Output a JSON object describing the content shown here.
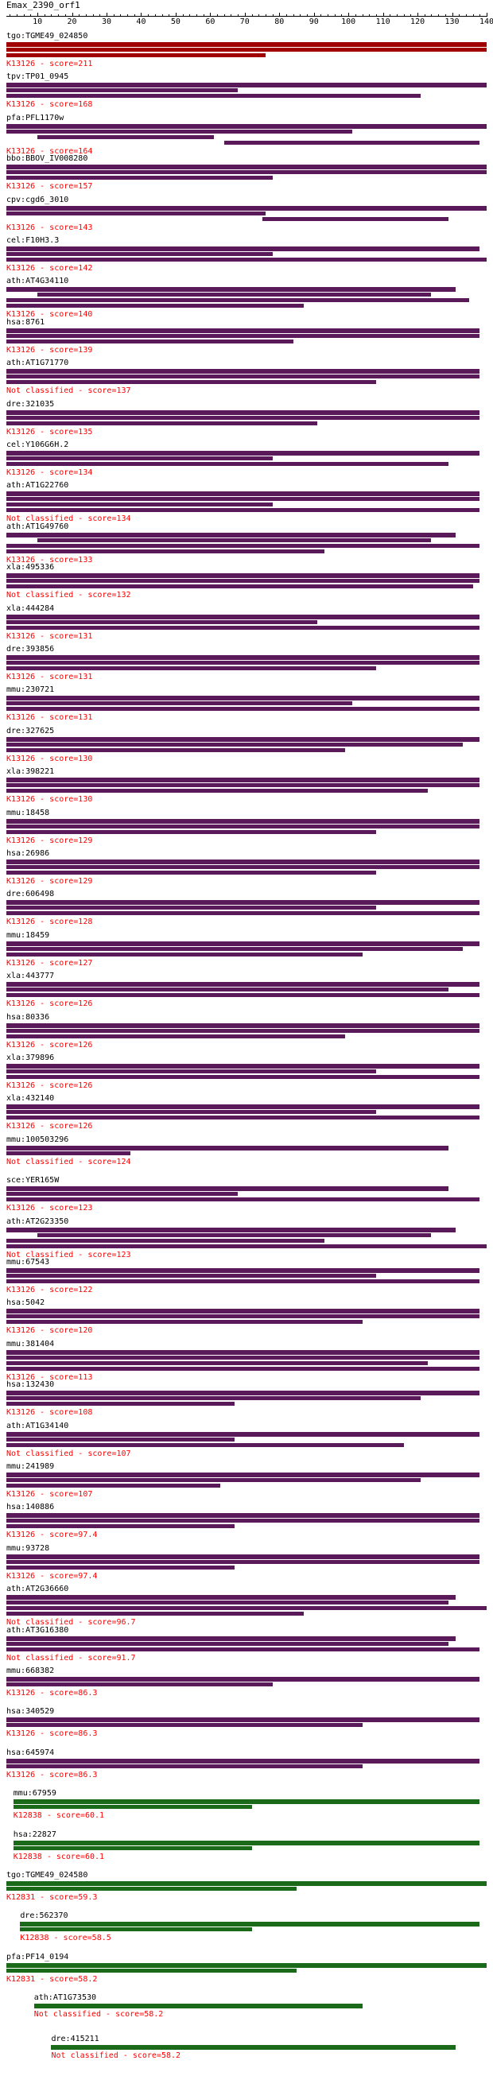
{
  "query": {
    "name": "Emax_2390_orf1",
    "length": 140,
    "ticks": [
      10,
      20,
      30,
      40,
      50,
      60,
      70,
      80,
      90,
      100,
      110,
      120,
      130,
      140
    ]
  },
  "colors": {
    "K13126": "#7f0000",
    "default_bar": "#5a1a5a",
    "green_bar": "#1a6a1a",
    "label_red": "#ff0000"
  },
  "hits": [
    {
      "name": "tgo:TGME49_024850",
      "classification": "K13126 - score=211",
      "color": "#a00000",
      "bars": [
        [
          1,
          140
        ],
        [
          1,
          140
        ],
        [
          1,
          76
        ]
      ]
    },
    {
      "name": "tpv:TP01_0945",
      "classification": "K13126 - score=168",
      "color": "#5a1a5a",
      "bars": [
        [
          1,
          140
        ],
        [
          1,
          68
        ],
        [
          1,
          121
        ]
      ]
    },
    {
      "name": "pfa:PFL1170w",
      "classification": "K13126 - score=164",
      "color": "#5a1a5a",
      "bars": [
        [
          1,
          140
        ],
        [
          1,
          101
        ],
        [
          10,
          61
        ],
        [
          64,
          138
        ]
      ]
    },
    {
      "name": "bbo:BBOV_IV008280",
      "classification": "K13126 - score=157",
      "color": "#5a1a5a",
      "bars": [
        [
          1,
          140
        ],
        [
          1,
          140
        ],
        [
          1,
          78
        ]
      ]
    },
    {
      "name": "cpv:cgd6_3010",
      "classification": "K13126 - score=143",
      "color": "#5a1a5a",
      "bars": [
        [
          1,
          140
        ],
        [
          1,
          76
        ],
        [
          75,
          129
        ]
      ]
    },
    {
      "name": "cel:F10H3.3",
      "classification": "K13126 - score=142",
      "color": "#5a1a5a",
      "bars": [
        [
          1,
          138
        ],
        [
          1,
          78
        ],
        [
          1,
          140
        ]
      ]
    },
    {
      "name": "ath:AT4G34110",
      "classification": "K13126 - score=140",
      "color": "#5a1a5a",
      "bars": [
        [
          1,
          131
        ],
        [
          10,
          124
        ],
        [
          1,
          135
        ],
        [
          1,
          87
        ]
      ]
    },
    {
      "name": "hsa:8761",
      "classification": "K13126 - score=139",
      "color": "#5a1a5a",
      "bars": [
        [
          1,
          138
        ],
        [
          1,
          138
        ],
        [
          1,
          84
        ]
      ]
    },
    {
      "name": "ath:AT1G71770",
      "classification": "Not classified - score=137",
      "color": "#5a1a5a",
      "bars": [
        [
          1,
          138
        ],
        [
          1,
          138
        ],
        [
          1,
          108
        ]
      ]
    },
    {
      "name": "dre:321035",
      "classification": "K13126 - score=135",
      "color": "#5a1a5a",
      "bars": [
        [
          1,
          138
        ],
        [
          1,
          138
        ],
        [
          1,
          91
        ]
      ]
    },
    {
      "name": "cel:Y106G6H.2",
      "classification": "K13126 - score=134",
      "color": "#5a1a5a",
      "bars": [
        [
          1,
          138
        ],
        [
          1,
          78
        ],
        [
          1,
          129
        ]
      ]
    },
    {
      "name": "ath:AT1G22760",
      "classification": "Not classified - score=134",
      "color": "#5a1a5a",
      "bars": [
        [
          1,
          138
        ],
        [
          1,
          138
        ],
        [
          1,
          78
        ],
        [
          1,
          138
        ]
      ]
    },
    {
      "name": "ath:AT1G49760",
      "classification": "K13126 - score=133",
      "color": "#5a1a5a",
      "bars": [
        [
          1,
          131
        ],
        [
          10,
          124
        ],
        [
          1,
          138
        ],
        [
          1,
          93
        ]
      ]
    },
    {
      "name": "xla:495336",
      "classification": "Not classified - score=132",
      "color": "#5a1a5a",
      "bars": [
        [
          1,
          138
        ],
        [
          1,
          138
        ],
        [
          1,
          136
        ]
      ]
    },
    {
      "name": "xla:444284",
      "classification": "K13126 - score=131",
      "color": "#5a1a5a",
      "bars": [
        [
          1,
          138
        ],
        [
          1,
          91
        ],
        [
          1,
          138
        ]
      ]
    },
    {
      "name": "dre:393856",
      "classification": "K13126 - score=131",
      "color": "#5a1a5a",
      "bars": [
        [
          1,
          138
        ],
        [
          1,
          138
        ],
        [
          1,
          108
        ]
      ]
    },
    {
      "name": "mmu:230721",
      "classification": "K13126 - score=131",
      "color": "#5a1a5a",
      "bars": [
        [
          1,
          138
        ],
        [
          1,
          101
        ],
        [
          1,
          138
        ]
      ]
    },
    {
      "name": "dre:327625",
      "classification": "K13126 - score=130",
      "color": "#5a1a5a",
      "bars": [
        [
          1,
          138
        ],
        [
          1,
          133
        ],
        [
          1,
          99
        ]
      ]
    },
    {
      "name": "xla:398221",
      "classification": "K13126 - score=130",
      "color": "#5a1a5a",
      "bars": [
        [
          1,
          138
        ],
        [
          1,
          138
        ],
        [
          1,
          123
        ]
      ]
    },
    {
      "name": "mmu:18458",
      "classification": "K13126 - score=129",
      "color": "#5a1a5a",
      "bars": [
        [
          1,
          138
        ],
        [
          1,
          138
        ],
        [
          1,
          108
        ]
      ]
    },
    {
      "name": "hsa:26986",
      "classification": "K13126 - score=129",
      "color": "#5a1a5a",
      "bars": [
        [
          1,
          138
        ],
        [
          1,
          138
        ],
        [
          1,
          108
        ]
      ]
    },
    {
      "name": "dre:606498",
      "classification": "K13126 - score=128",
      "color": "#5a1a5a",
      "bars": [
        [
          1,
          138
        ],
        [
          1,
          108
        ],
        [
          1,
          138
        ]
      ]
    },
    {
      "name": "mmu:18459",
      "classification": "K13126 - score=127",
      "color": "#5a1a5a",
      "bars": [
        [
          1,
          138
        ],
        [
          1,
          133
        ],
        [
          1,
          104
        ]
      ]
    },
    {
      "name": "xla:443777",
      "classification": "K13126 - score=126",
      "color": "#5a1a5a",
      "bars": [
        [
          1,
          138
        ],
        [
          1,
          129
        ],
        [
          1,
          138
        ]
      ]
    },
    {
      "name": "hsa:80336",
      "classification": "K13126 - score=126",
      "color": "#5a1a5a",
      "bars": [
        [
          1,
          138
        ],
        [
          1,
          138
        ],
        [
          1,
          99
        ]
      ]
    },
    {
      "name": "xla:379896",
      "classification": "K13126 - score=126",
      "color": "#5a1a5a",
      "bars": [
        [
          1,
          138
        ],
        [
          1,
          108
        ],
        [
          1,
          138
        ]
      ]
    },
    {
      "name": "xla:432140",
      "classification": "K13126 - score=126",
      "color": "#5a1a5a",
      "bars": [
        [
          1,
          138
        ],
        [
          1,
          108
        ],
        [
          1,
          138
        ]
      ]
    },
    {
      "name": "mmu:100503296",
      "classification": "Not classified - score=124",
      "color": "#5a1a5a",
      "bars": [
        [
          1,
          129
        ],
        [
          1,
          37
        ]
      ]
    },
    {
      "name": "sce:YER165W",
      "classification": "K13126 - score=123",
      "color": "#5a1a5a",
      "bars": [
        [
          1,
          129
        ],
        [
          1,
          68
        ],
        [
          1,
          138
        ]
      ]
    },
    {
      "name": "ath:AT2G23350",
      "classification": "Not classified - score=123",
      "color": "#5a1a5a",
      "bars": [
        [
          1,
          131
        ],
        [
          10,
          124
        ],
        [
          1,
          93
        ],
        [
          1,
          140
        ]
      ]
    },
    {
      "name": "mmu:67543",
      "classification": "K13126 - score=122",
      "color": "#5a1a5a",
      "bars": [
        [
          1,
          138
        ],
        [
          1,
          108
        ],
        [
          1,
          138
        ]
      ]
    },
    {
      "name": "hsa:5042",
      "classification": "K13126 - score=120",
      "color": "#5a1a5a",
      "bars": [
        [
          1,
          138
        ],
        [
          1,
          138
        ],
        [
          1,
          104
        ]
      ]
    },
    {
      "name": "mmu:381404",
      "classification": "K13126 - score=113",
      "color": "#5a1a5a",
      "bars": [
        [
          1,
          138
        ],
        [
          1,
          138
        ],
        [
          1,
          123
        ],
        [
          1,
          138
        ]
      ]
    },
    {
      "name": "hsa:132430",
      "classification": "K13126 - score=108",
      "color": "#5a1a5a",
      "bars": [
        [
          1,
          138
        ],
        [
          1,
          121
        ],
        [
          1,
          67
        ]
      ]
    },
    {
      "name": "ath:AT1G34140",
      "classification": "Not classified - score=107",
      "color": "#5a1a5a",
      "bars": [
        [
          1,
          138
        ],
        [
          1,
          67
        ],
        [
          1,
          116
        ]
      ]
    },
    {
      "name": "mmu:241989",
      "classification": "K13126 - score=107",
      "color": "#5a1a5a",
      "bars": [
        [
          1,
          138
        ],
        [
          1,
          121
        ],
        [
          1,
          63
        ]
      ]
    },
    {
      "name": "hsa:140886",
      "classification": "K13126 - score=97.4",
      "color": "#5a1a5a",
      "bars": [
        [
          1,
          138
        ],
        [
          1,
          138
        ],
        [
          1,
          67
        ]
      ]
    },
    {
      "name": "mmu:93728",
      "classification": "K13126 - score=97.4",
      "color": "#5a1a5a",
      "bars": [
        [
          1,
          138
        ],
        [
          1,
          138
        ],
        [
          1,
          67
        ]
      ]
    },
    {
      "name": "ath:AT2G36660",
      "classification": "Not classified - score=96.7",
      "color": "#5a1a5a",
      "bars": [
        [
          1,
          131
        ],
        [
          1,
          129
        ],
        [
          1,
          140
        ],
        [
          1,
          87
        ]
      ]
    },
    {
      "name": "ath:AT3G16380",
      "classification": "Not classified - score=91.7",
      "color": "#5a1a5a",
      "bars": [
        [
          1,
          131
        ],
        [
          1,
          129
        ],
        [
          1,
          138
        ]
      ]
    },
    {
      "name": "mmu:668382",
      "classification": "K13126 - score=86.3",
      "color": "#5a1a5a",
      "bars": [
        [
          1,
          138
        ],
        [
          1,
          78
        ]
      ]
    },
    {
      "name": "hsa:340529",
      "classification": "K13126 - score=86.3",
      "color": "#5a1a5a",
      "bars": [
        [
          1,
          138
        ],
        [
          1,
          104
        ]
      ]
    },
    {
      "name": "hsa:645974",
      "classification": "K13126 - score=86.3",
      "color": "#5a1a5a",
      "bars": [
        [
          1,
          138
        ],
        [
          1,
          104
        ]
      ]
    },
    {
      "name": "mmu:67959",
      "classification": "K12838 - score=60.1",
      "color": "#1a6a1a",
      "bars": [
        [
          3,
          138
        ],
        [
          3,
          72
        ]
      ]
    },
    {
      "name": "hsa:22827",
      "classification": "K12838 - score=60.1",
      "color": "#1a6a1a",
      "bars": [
        [
          3,
          138
        ],
        [
          3,
          72
        ]
      ]
    },
    {
      "name": "tgo:TGME49_024580",
      "classification": "K12831 - score=59.3",
      "color": "#1a6a1a",
      "bars": [
        [
          1,
          140
        ],
        [
          1,
          85
        ]
      ]
    },
    {
      "name": "dre:562370",
      "classification": "K12838 - score=58.5",
      "color": "#1a6a1a",
      "bars": [
        [
          5,
          138
        ],
        [
          5,
          72
        ]
      ]
    },
    {
      "name": "pfa:PF14_0194",
      "classification": "K12831 - score=58.2",
      "color": "#1a6a1a",
      "bars": [
        [
          1,
          140
        ],
        [
          1,
          85
        ]
      ]
    },
    {
      "name": "ath:AT1G73530",
      "classification": "Not classified - score=58.2",
      "color": "#1a6a1a",
      "bars": [
        [
          9,
          104
        ]
      ]
    },
    {
      "name": "dre:415211",
      "classification": "Not classified - score=58.2",
      "color": "#1a6a1a",
      "bars": [
        [
          14,
          131
        ]
      ]
    }
  ]
}
